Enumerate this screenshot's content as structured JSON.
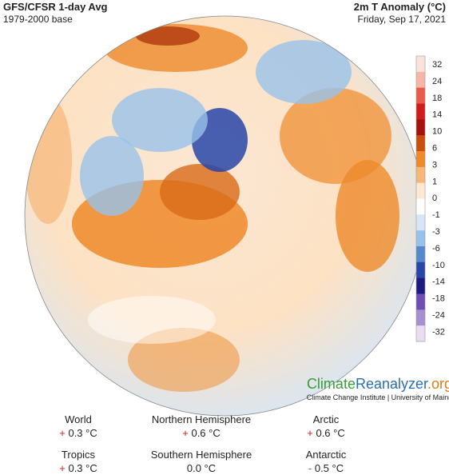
{
  "header": {
    "title": "GFS/CFSR 1-day Avg",
    "subtitle": "1979-2000 base",
    "variable": "2m T Anomaly (°C)",
    "date": "Friday, Sep 17, 2021"
  },
  "colorbar": {
    "ticks": [
      "32",
      "24",
      "18",
      "14",
      "10",
      "6",
      "3",
      "1",
      "0",
      "-1",
      "-3",
      "-6",
      "-10",
      "-14",
      "-18",
      "-24",
      "-32"
    ],
    "colors": [
      "#fbe3dc",
      "#f6b6a6",
      "#ea5a4a",
      "#d01c1c",
      "#a61010",
      "#c8500a",
      "#ee8a2a",
      "#f6b778",
      "#fde8d2",
      "#ffffff",
      "#d6e6f6",
      "#98c2ea",
      "#5588cc",
      "#2845a8",
      "#1c1c80",
      "#6e50b4",
      "#a690d2",
      "#e8def0"
    ]
  },
  "branding": {
    "part1": "Climate",
    "part2": "Reanalyzer",
    "part3": ".org",
    "credit": "Climate Change Institute | University of Maine"
  },
  "stats": [
    {
      "label": "World",
      "sign": "+",
      "value": "0.3 °C"
    },
    {
      "label": "Northern Hemisphere",
      "sign": "+",
      "value": "0.6 °C"
    },
    {
      "label": "Arctic",
      "sign": "+",
      "value": "0.6 °C"
    },
    {
      "label": "Tropics",
      "sign": "+",
      "value": "0.3 °C"
    },
    {
      "label": "Southern Hemisphere",
      "sign": "",
      "value": "0.0 °C"
    },
    {
      "label": "Antarctic",
      "sign": "-",
      "value": "0.5 °C"
    }
  ]
}
